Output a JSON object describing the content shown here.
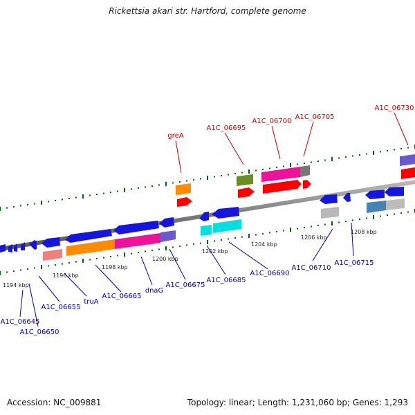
{
  "title": "Rickettsia akari str. Hartford, complete genome",
  "footer": {
    "accession": "Accession: NC_009881",
    "summary": "Topology: linear; Length: 1,231,060 bp; Genes: 1,293"
  },
  "colors": {
    "backbone": "#888888",
    "tick": "#006600",
    "top_label": "#cc0000",
    "bottom_label": "#0000aa",
    "scale_text": "#222222"
  },
  "scale_labels": [
    "1194 kbp",
    "1196 kbp",
    "1198 kbp",
    "1200 kbp",
    "1202 kbp",
    "1204 kbp",
    "1206 kbp",
    "1208 kbp"
  ],
  "top_gene_labels": [
    "greA",
    "A1C_06695",
    "A1C_06700",
    "A1C_06705",
    "A1C_06730"
  ],
  "bottom_gene_labels": [
    "A1C_06645",
    "A1C_06650",
    "A1C_06655",
    "truA",
    "A1C_06665",
    "dnaG",
    "A1C_06675",
    "A1C_06685",
    "A1C_06690",
    "A1C_06710",
    "A1C_06715"
  ]
}
